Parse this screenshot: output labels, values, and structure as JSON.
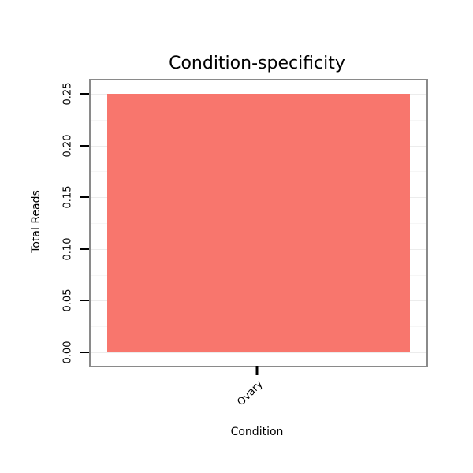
{
  "chart_data": {
    "type": "bar",
    "title": "Condition-specificity",
    "xlabel": "Condition",
    "ylabel": "Total Reads",
    "categories": [
      "Ovary"
    ],
    "values": [
      0.25
    ],
    "ylim": [
      -0.013,
      0.263
    ],
    "ytick_values": [
      0,
      0.05,
      0.1,
      0.15,
      0.2,
      0.25
    ],
    "ytick_labels": [
      "0.00",
      "0.05",
      "0.10",
      "0.15",
      "0.20",
      "0.25"
    ],
    "minor_tick_values": [
      0.025,
      0.075,
      0.125,
      0.175,
      0.225
    ],
    "bar_color": "#F8766D",
    "border_color": "#8a8a8a",
    "major_grid_color": "#ececec",
    "minor_grid_color": "#f6f6f6",
    "grid": true,
    "legend": "none"
  }
}
